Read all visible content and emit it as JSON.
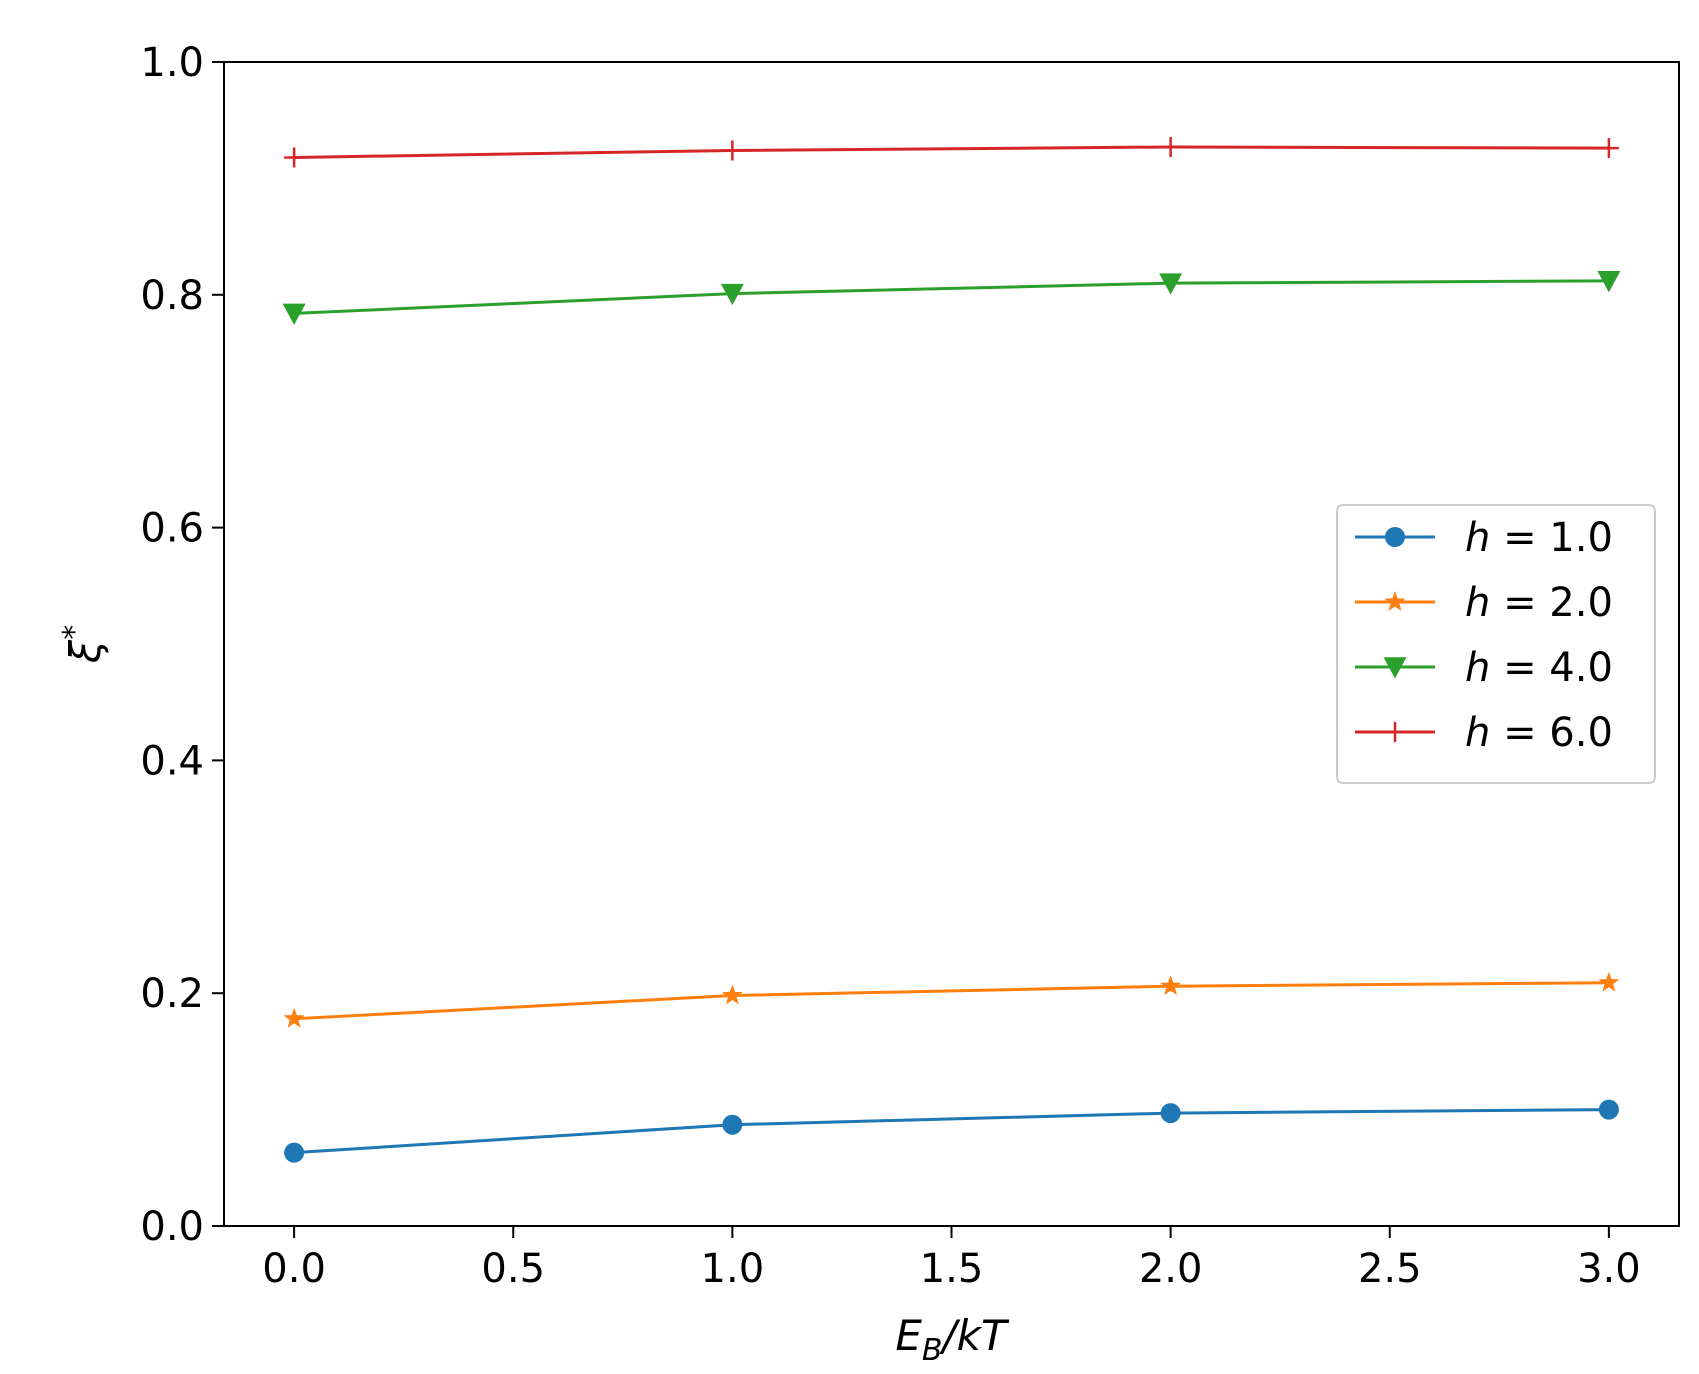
{
  "chart_data": {
    "type": "line",
    "title": "",
    "xlabel": "E_B/kT",
    "xlabel_main": "E",
    "xlabel_sub": "B",
    "xlabel_rest": "/kT",
    "ylabel": "ξ*",
    "ylabel_main": "ξ",
    "ylabel_sup": "*",
    "xlim": [
      -0.16,
      3.16
    ],
    "ylim": [
      0.0,
      1.0
    ],
    "xticks": [
      0.0,
      0.5,
      1.0,
      1.5,
      2.0,
      2.5,
      3.0
    ],
    "xtick_labels": [
      "0.0",
      "0.5",
      "1.0",
      "1.5",
      "2.0",
      "2.5",
      "3.0"
    ],
    "yticks": [
      0.0,
      0.2,
      0.4,
      0.6,
      0.8,
      1.0
    ],
    "ytick_labels": [
      "0.0",
      "0.2",
      "0.4",
      "0.6",
      "0.8",
      "1.0"
    ],
    "legend_position": "center-right",
    "series": [
      {
        "name": "h = 1.0",
        "name_var": "h",
        "name_rest": " = 1.0",
        "color": "#1f77b4",
        "marker": "circle",
        "x": [
          0,
          1,
          2,
          3
        ],
        "y": [
          0.063,
          0.087,
          0.097,
          0.1
        ]
      },
      {
        "name": "h = 2.0",
        "name_var": "h",
        "name_rest": " = 2.0",
        "color": "#ff7f0e",
        "marker": "star",
        "x": [
          0,
          1,
          2,
          3
        ],
        "y": [
          0.178,
          0.198,
          0.206,
          0.209
        ]
      },
      {
        "name": "h = 4.0",
        "name_var": "h",
        "name_rest": " = 4.0",
        "color": "#2ca02c",
        "marker": "triangle-down",
        "x": [
          0,
          1,
          2,
          3
        ],
        "y": [
          0.784,
          0.801,
          0.81,
          0.812
        ]
      },
      {
        "name": "h = 6.0",
        "name_var": "h",
        "name_rest": " = 6.0",
        "color": "#d62728",
        "marker": "plus",
        "x": [
          0,
          1,
          2,
          3
        ],
        "y": [
          0.918,
          0.924,
          0.927,
          0.926
        ]
      }
    ]
  }
}
